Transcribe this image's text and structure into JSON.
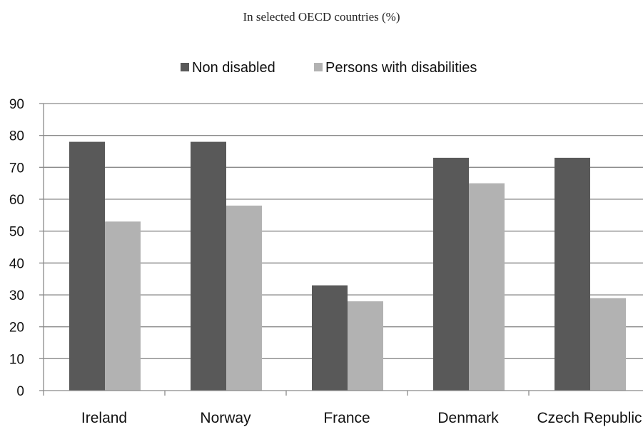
{
  "chart_data": {
    "type": "bar",
    "subtitle": "In selected OECD countries (%)",
    "categories": [
      "Ireland",
      "Norway",
      "France",
      "Denmark",
      "Czech Republic"
    ],
    "series": [
      {
        "name": "Non disabled",
        "values": [
          78,
          78,
          33,
          73,
          73
        ],
        "color": "#595959"
      },
      {
        "name": "Persons with disabilities",
        "values": [
          53,
          58,
          28,
          65,
          29
        ],
        "color": "#b2b2b2"
      }
    ],
    "ylim": [
      0,
      90
    ],
    "yticks": [
      0,
      10,
      20,
      30,
      40,
      50,
      60,
      70,
      80,
      90
    ],
    "grid": true,
    "legend_position": "top-center"
  }
}
